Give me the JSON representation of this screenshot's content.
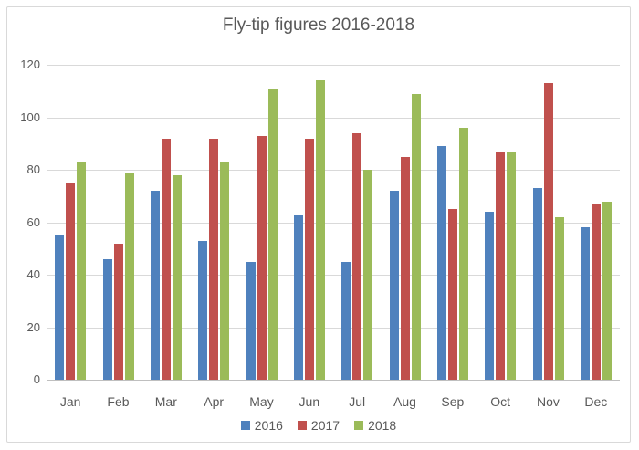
{
  "chart_data": {
    "type": "bar",
    "title": "Fly-tip figures 2016-2018",
    "categories": [
      "Jan",
      "Feb",
      "Mar",
      "Apr",
      "May",
      "Jun",
      "Jul",
      "Aug",
      "Sep",
      "Oct",
      "Nov",
      "Dec"
    ],
    "series": [
      {
        "name": "2016",
        "color": "#4F81BD",
        "values": [
          55,
          46,
          72,
          53,
          45,
          63,
          45,
          72,
          89,
          64,
          73,
          58
        ]
      },
      {
        "name": "2017",
        "color": "#C0504D",
        "values": [
          75,
          52,
          92,
          92,
          93,
          92,
          94,
          85,
          65,
          87,
          113,
          67
        ]
      },
      {
        "name": "2018",
        "color": "#9BBB59",
        "values": [
          83,
          79,
          78,
          83,
          111,
          114,
          80,
          109,
          96,
          87,
          62,
          68
        ]
      }
    ],
    "xlabel": "",
    "ylabel": "",
    "ylim": [
      0,
      120
    ],
    "yticks": [
      0,
      20,
      40,
      60,
      80,
      100,
      120
    ],
    "grid": true,
    "legend_position": "bottom"
  }
}
